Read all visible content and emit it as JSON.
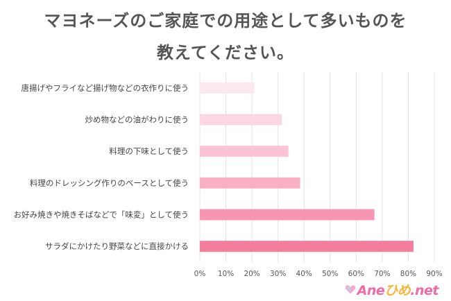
{
  "title_line1": "マヨネーズのご家庭での用途として多いものを",
  "title_line2": "教えてください。",
  "logo": {
    "part1": "Ane",
    "part2": "ひめ",
    "part3": ".net"
  },
  "chart_data": {
    "type": "bar",
    "orientation": "horizontal",
    "categories": [
      "唐揚げやフライなど揚げ物などの衣作りに使う",
      "炒め物などの油がわりに使う",
      "料理の下味として使う",
      "料理のドレッシング作りのベースとして使う",
      "お好み焼きや焼きそばなどで「味変」として使う",
      "サラダにかけたり野菜などに直接かける"
    ],
    "values": [
      21,
      31.5,
      34,
      38.5,
      67,
      82
    ],
    "xlim": [
      0,
      90
    ],
    "xticks": [
      "0%",
      "10%",
      "20%",
      "30%",
      "40%",
      "50%",
      "60%",
      "70%",
      "80%",
      "90%"
    ],
    "grid": true,
    "colors": [
      "#fce8ee",
      "#fbd7e1",
      "#fbc3d3",
      "#f9afc4",
      "#f796b2",
      "#f47e9e"
    ]
  }
}
